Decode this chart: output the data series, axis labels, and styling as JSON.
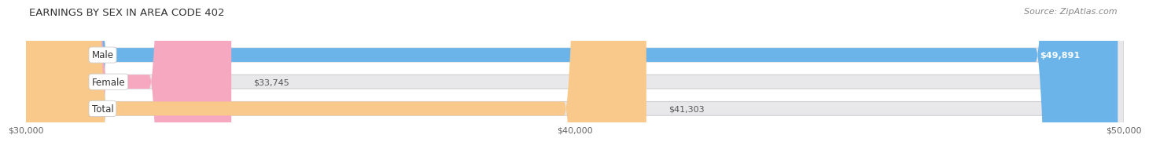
{
  "title": "EARNINGS BY SEX IN AREA CODE 402",
  "source": "Source: ZipAtlas.com",
  "categories": [
    "Male",
    "Female",
    "Total"
  ],
  "values": [
    49891,
    33745,
    41303
  ],
  "x_min": 30000,
  "x_max": 50000,
  "x_ticks": [
    30000,
    40000,
    50000
  ],
  "x_tick_labels": [
    "$30,000",
    "$40,000",
    "$50,000"
  ],
  "bar_colors": [
    "#6ab4ea",
    "#f5a8c0",
    "#f8c98a"
  ],
  "bar_bg_color": "#e8e8ea",
  "value_labels": [
    "$49,891",
    "$33,745",
    "$41,303"
  ],
  "value_label_inside": [
    true,
    false,
    false
  ],
  "background_color": "#ffffff",
  "bar_height": 0.52,
  "title_fontsize": 9.5,
  "source_fontsize": 8,
  "tick_fontsize": 8,
  "label_fontsize": 8.5,
  "value_fontsize": 8
}
